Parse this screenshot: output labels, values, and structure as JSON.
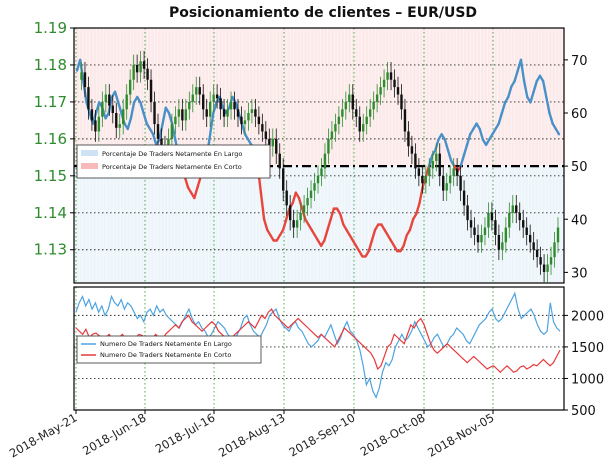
{
  "chart_data": [
    {
      "type": "line",
      "title": "Posicionamiento de clientes – EUR/USD",
      "description_series": "EUR/USD candlesticks with % net-long (blue) / % net-short (red) sentiment line",
      "left_axis": {
        "ticks": [
          "1.13",
          "1.14",
          "1.15",
          "1.16",
          "1.17",
          "1.18",
          "1.19"
        ],
        "ylim": [
          1.121,
          1.19
        ]
      },
      "right_axis": {
        "ticks": [
          "30",
          "40",
          "50",
          "60",
          "70"
        ],
        "ylim": [
          28,
          76
        ]
      },
      "x_ticks": [
        "2018-May-21",
        "2018-Jun-18",
        "2018-Jul-16",
        "2018-Aug-13",
        "2018-Sep-10",
        "2018-Oct-08",
        "2018-Nov-05"
      ],
      "threshold": 50,
      "legend": [
        {
          "label": "Porcentaje De Traders Netamente En Largo",
          "color": "#a9cbe8"
        },
        {
          "label": "Porcentaje De Traders Netamente En Corto",
          "color": "#f4a3a3"
        }
      ],
      "sentiment_pct_long": [
        68,
        70,
        66,
        62,
        60,
        58,
        60,
        62,
        61,
        59,
        60,
        63,
        64,
        62,
        60,
        58,
        57,
        59,
        62,
        63,
        62,
        60,
        58,
        57,
        56,
        54,
        55,
        58,
        61,
        60,
        58,
        55,
        52,
        50,
        48,
        46,
        45,
        44,
        46,
        48,
        50,
        52,
        56,
        60,
        62,
        63,
        61,
        60,
        61,
        63,
        62,
        60,
        58,
        56,
        55,
        54,
        52,
        50,
        45,
        40,
        38,
        37,
        36,
        36,
        37,
        38,
        40,
        42,
        43,
        45,
        44,
        42,
        40,
        39,
        38,
        37,
        36,
        35,
        36,
        38,
        40,
        42,
        42,
        41,
        39,
        38,
        37,
        36,
        35,
        34,
        33,
        33,
        34,
        36,
        38,
        39,
        39,
        38,
        37,
        36,
        35,
        34,
        34,
        35,
        37,
        38,
        40,
        41,
        43,
        46,
        48,
        50,
        52,
        53,
        55,
        56,
        55,
        53,
        51,
        50,
        49,
        50,
        52,
        54,
        56,
        57,
        58,
        57,
        55,
        54,
        55,
        56,
        57,
        58,
        60,
        62,
        63,
        65,
        66,
        68,
        70,
        66,
        63,
        62,
        64,
        66,
        67,
        66,
        63,
        60,
        58,
        57,
        56
      ],
      "price_ohlc_note": "Daily EUR/USD candlesticks, range approx 1.123 – 1.183",
      "price_close": [
        1.176,
        1.178,
        1.174,
        1.168,
        1.165,
        1.162,
        1.166,
        1.17,
        1.172,
        1.169,
        1.167,
        1.163,
        1.164,
        1.168,
        1.172,
        1.176,
        1.18,
        1.178,
        1.181,
        1.179,
        1.176,
        1.17,
        1.164,
        1.16,
        1.158,
        1.156,
        1.16,
        1.164,
        1.166,
        1.168,
        1.165,
        1.168,
        1.17,
        1.172,
        1.174,
        1.172,
        1.168,
        1.166,
        1.17,
        1.172,
        1.171,
        1.168,
        1.166,
        1.168,
        1.17,
        1.168,
        1.166,
        1.164,
        1.165,
        1.167,
        1.168,
        1.166,
        1.164,
        1.162,
        1.16,
        1.158,
        1.16,
        1.156,
        1.152,
        1.146,
        1.142,
        1.138,
        1.136,
        1.138,
        1.14,
        1.142,
        1.144,
        1.146,
        1.148,
        1.15,
        1.152,
        1.156,
        1.16,
        1.162,
        1.164,
        1.166,
        1.168,
        1.17,
        1.172,
        1.168,
        1.166,
        1.162,
        1.164,
        1.166,
        1.168,
        1.17,
        1.172,
        1.174,
        1.176,
        1.178,
        1.176,
        1.174,
        1.172,
        1.168,
        1.162,
        1.158,
        1.156,
        1.152,
        1.15,
        1.148,
        1.15,
        1.152,
        1.154,
        1.156,
        1.15,
        1.146,
        1.148,
        1.15,
        1.152,
        1.15,
        1.146,
        1.142,
        1.138,
        1.136,
        1.134,
        1.132,
        1.134,
        1.136,
        1.14,
        1.138,
        1.134,
        1.13,
        1.132,
        1.136,
        1.14,
        1.142,
        1.14,
        1.138,
        1.136,
        1.134,
        1.132,
        1.13,
        1.128,
        1.126,
        1.124,
        1.126,
        1.128,
        1.132,
        1.136
      ]
    },
    {
      "type": "line",
      "right_axis": {
        "ticks": [
          "500",
          "1000",
          "1500",
          "2000"
        ],
        "ylim": [
          500,
          2450
        ]
      },
      "legend": [
        {
          "label": "Numero De Traders Netamente En Largo",
          "color": "#4da3e0"
        },
        {
          "label": "Numero De Traders Netamente En Corto",
          "color": "#e8383b"
        }
      ],
      "series": [
        {
          "name": "Numero De Traders Netamente En Largo",
          "color": "#4da3e0",
          "values": [
            2050,
            2200,
            2300,
            2150,
            2250,
            2100,
            2200,
            2050,
            2150,
            2000,
            2100,
            2300,
            2200,
            2150,
            2250,
            2100,
            2200,
            2150,
            2050,
            1950,
            2000,
            1900,
            2050,
            2100,
            2000,
            2150,
            2050,
            2100,
            2000,
            1950,
            1900,
            1850,
            1800,
            1900,
            2000,
            2100,
            1950,
            1850,
            1900,
            1800,
            1750,
            1650,
            1700,
            1800,
            1900,
            1850,
            1800,
            1700,
            1650,
            1600,
            1700,
            1800,
            1950,
            2000,
            1850,
            1750,
            1700,
            1650,
            1750,
            1850,
            2000,
            2050,
            2100,
            1950,
            1850,
            1800,
            1750,
            1850,
            1900,
            1800,
            1750,
            1650,
            1550,
            1500,
            1550,
            1600,
            1700,
            1650,
            1750,
            1850,
            1700,
            1550,
            1650,
            1800,
            1900,
            1750,
            1700,
            1600,
            1450,
            1200,
            900,
            1000,
            800,
            700,
            850,
            1100,
            1250,
            1200,
            1300,
            1500,
            1600,
            1700,
            1600,
            1650,
            1750,
            1900,
            1800,
            1700,
            1600,
            1500,
            1550,
            1650,
            1700,
            1600,
            1500,
            1550,
            1650,
            1700,
            1800,
            1750,
            1700,
            1600,
            1550,
            1650,
            1750,
            1850,
            1900,
            1950,
            2050,
            2100,
            1950,
            1900,
            1950,
            2050,
            2150,
            2250,
            2350,
            2100,
            1950,
            2000,
            2050,
            2100,
            2000,
            1850,
            1750,
            1700,
            1750,
            2200,
            1900,
            1800,
            1750
          ]
        },
        {
          "name": "Numero De Traders Netamente En Corto",
          "color": "#e8383b",
          "values": [
            1800,
            1750,
            1700,
            1780,
            1650,
            1700,
            1720,
            1680,
            1600,
            1650,
            1700,
            1620,
            1580,
            1650,
            1700,
            1620,
            1550,
            1600,
            1650,
            1700,
            1680,
            1600,
            1550,
            1620,
            1700,
            1650,
            1600,
            1700,
            1750,
            1800,
            1850,
            1800,
            1900,
            1950,
            2000,
            1900,
            1850,
            1800,
            1750,
            1800,
            1850,
            1900,
            1850,
            1750,
            1700,
            1650,
            1600,
            1650,
            1700,
            1750,
            1800,
            1850,
            1900,
            1850,
            1800,
            1900,
            2000,
            1950,
            2050,
            2100,
            2000,
            1950,
            1900,
            1850,
            1800,
            1850,
            1900,
            1950,
            1900,
            1850,
            1800,
            1750,
            1700,
            1650,
            1700,
            1650,
            1600,
            1550,
            1500,
            1600,
            1700,
            1800,
            1750,
            1700,
            1650,
            1600,
            1550,
            1500,
            1450,
            1400,
            1300,
            1150,
            1200,
            1350,
            1500,
            1550,
            1700,
            1650,
            1600,
            1550,
            1700,
            1850,
            1800,
            1900,
            1950,
            1850,
            1700,
            1550,
            1450,
            1400,
            1450,
            1500,
            1550,
            1500,
            1450,
            1400,
            1350,
            1300,
            1250,
            1300,
            1350,
            1300,
            1250,
            1200,
            1150,
            1180,
            1200,
            1150,
            1100,
            1150,
            1200,
            1150,
            1100,
            1120,
            1180,
            1200,
            1150,
            1180,
            1220,
            1200,
            1250,
            1300,
            1250,
            1200,
            1250,
            1350,
            1450
          ]
        }
      ]
    }
  ]
}
